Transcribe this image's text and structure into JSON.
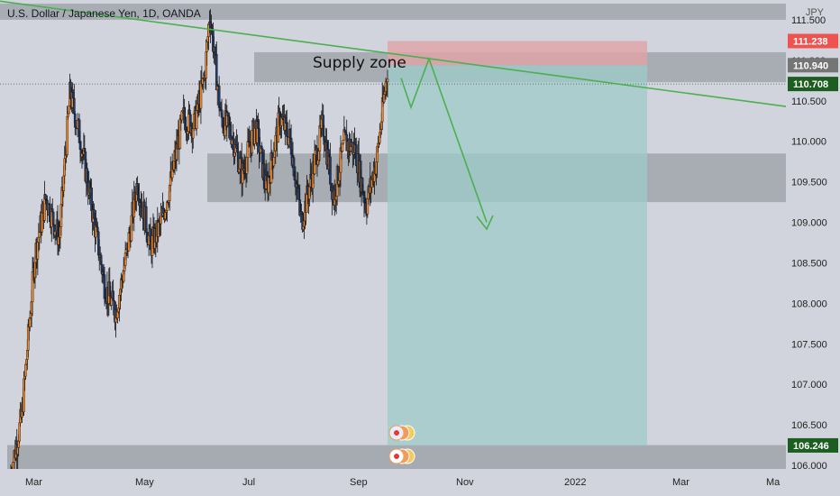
{
  "header": {
    "title": "U.S. Dollar / Japanese Yen, 1D, OANDA",
    "currency": "JPY"
  },
  "annotation": {
    "supply_label": "Supply zone"
  },
  "colors": {
    "up_candle": "#f28a2b",
    "down_candle": "#1e3b6b",
    "trendline": "#4caf50",
    "target_zone": "#9ecbca",
    "stop_zone": "#e0a3a8",
    "zone_gray": "#9aa0a6",
    "price_current": "#1b5e20",
    "price_stop": "#ef5350",
    "price_target": "#1b5e20",
    "price_entry": "#757575"
  },
  "chart_data": {
    "type": "candlestick",
    "symbol": "USDJPY",
    "timeframe": "1D",
    "x_tick_labels": [
      "Mar",
      "May",
      "Jul",
      "Sep",
      "Nov",
      "2022",
      "Mar",
      "Ma"
    ],
    "y_tick_labels": [
      "111.500",
      "111.000",
      "110.500",
      "110.000",
      "109.500",
      "109.000",
      "108.500",
      "108.000",
      "107.500",
      "107.000",
      "106.500",
      "106.000"
    ],
    "ylim": [
      105.95,
      111.7
    ],
    "price_labels": {
      "stop": "111.238",
      "entry": "110.940",
      "current": "110.708",
      "target": "106.246"
    },
    "zones": {
      "supply_zone": [
        110.73,
        111.1
      ],
      "support_zone": [
        109.25,
        109.85
      ],
      "bottom_zone": [
        105.95,
        106.25
      ],
      "top_zone": [
        111.5,
        111.7
      ]
    },
    "trade": {
      "entry": 110.94,
      "stop": 111.238,
      "target": 106.246
    },
    "trendline": {
      "from": [
        "Feb",
        111.75
      ],
      "to": [
        "Mar 2022",
        110.5
      ]
    },
    "projection": [
      [
        "Sep",
        110.75
      ],
      [
        "Sep",
        110.42
      ],
      [
        "Oct",
        111.02
      ],
      [
        "Nov",
        109.0
      ]
    ],
    "candle_path": [
      [
        105.9,
        0
      ],
      [
        106.6,
        4
      ],
      [
        108.6,
        9
      ],
      [
        109.3,
        13
      ],
      [
        108.8,
        18
      ],
      [
        110.6,
        22
      ],
      [
        110.0,
        26
      ],
      [
        109.0,
        31
      ],
      [
        108.2,
        35
      ],
      [
        107.9,
        39
      ],
      [
        108.6,
        43
      ],
      [
        109.5,
        47
      ],
      [
        108.7,
        52
      ],
      [
        109.0,
        56
      ],
      [
        109.6,
        60
      ],
      [
        110.3,
        64
      ],
      [
        110.2,
        68
      ],
      [
        110.8,
        72
      ],
      [
        111.6,
        74
      ],
      [
        110.3,
        78
      ],
      [
        110.1,
        82
      ],
      [
        109.6,
        86
      ],
      [
        110.2,
        91
      ],
      [
        109.4,
        95
      ],
      [
        110.3,
        100
      ],
      [
        110.0,
        104
      ],
      [
        109.0,
        108
      ],
      [
        109.6,
        112
      ],
      [
        110.2,
        116
      ],
      [
        109.3,
        120
      ],
      [
        110.0,
        124
      ],
      [
        109.9,
        128
      ],
      [
        109.2,
        132
      ],
      [
        109.8,
        136
      ],
      [
        110.9,
        140
      ]
    ]
  }
}
